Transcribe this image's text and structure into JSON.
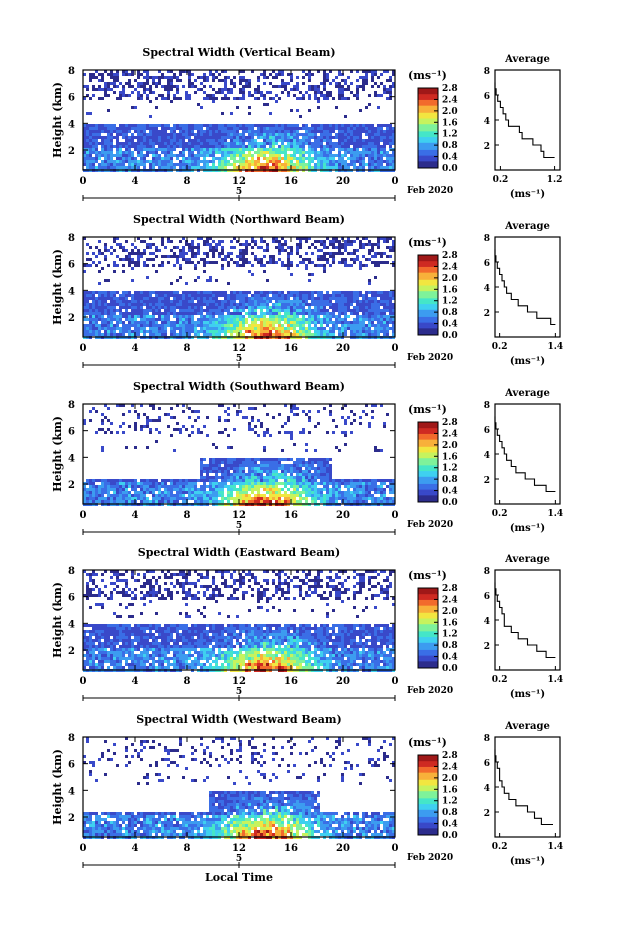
{
  "figure": {
    "month_label": "Feb 2020",
    "date_marker": "5",
    "bottom_xlabel": "Local Time",
    "unit_label": "(ms⁻¹)",
    "average_title": "Average",
    "average_xlabel": "(ms⁻¹)",
    "ylabel": "Height (km)"
  },
  "colors": {
    "colormap": [
      "#2c2c8c",
      "#3949c9",
      "#3a6ee6",
      "#3c9cf0",
      "#3fd0f0",
      "#45e6c8",
      "#7ef29a",
      "#c6f35e",
      "#f2e640",
      "#f8b03a",
      "#f26a2c",
      "#cf2a22",
      "#a01818"
    ],
    "frame": "#000000"
  },
  "chart_data": [
    {
      "type": "heatmap",
      "title": "Spectral Width (Vertical Beam)",
      "xlabel": "",
      "ylabel": "Height (km)",
      "x_ticks": [
        "0",
        "4",
        "8",
        "12",
        "16",
        "20",
        "0"
      ],
      "xlim": [
        0,
        24
      ],
      "y_ticks": [
        "2",
        "4",
        "6",
        "8"
      ],
      "ylim": [
        0.5,
        8
      ],
      "colorbar_ticks": [
        "0.0",
        "0.4",
        "0.8",
        "1.2",
        "1.6",
        "2.0",
        "2.4",
        "2.8"
      ],
      "colorbar_range": [
        0,
        2.8
      ],
      "average_profile": {
        "xlabel": "(ms⁻¹)",
        "x_ticks": [
          "0.2",
          "1.2"
        ],
        "xlim": [
          0.1,
          1.3
        ],
        "heights": [
          1.0,
          1.5,
          2.0,
          2.5,
          3.0,
          3.5,
          4.0,
          4.5,
          5.0,
          5.5,
          6.0,
          6.5,
          7.0
        ],
        "values": [
          1.2,
          1.0,
          0.95,
          0.8,
          0.6,
          0.55,
          0.35,
          0.3,
          0.25,
          0.2,
          0.15,
          0.12,
          0.1
        ]
      }
    },
    {
      "type": "heatmap",
      "title": "Spectral Width (Northward Beam)",
      "xlabel": "",
      "ylabel": "Height (km)",
      "x_ticks": [
        "0",
        "4",
        "8",
        "12",
        "16",
        "20",
        "0"
      ],
      "xlim": [
        0,
        24
      ],
      "y_ticks": [
        "2",
        "4",
        "6",
        "8"
      ],
      "ylim": [
        0.5,
        8
      ],
      "colorbar_ticks": [
        "0.0",
        "0.4",
        "0.8",
        "1.2",
        "1.6",
        "2.0",
        "2.4",
        "2.8"
      ],
      "colorbar_range": [
        0,
        2.8
      ],
      "average_profile": {
        "xlabel": "(ms⁻¹)",
        "x_ticks": [
          "0.2",
          "1.4"
        ],
        "xlim": [
          0.1,
          1.5
        ],
        "heights": [
          1.0,
          1.5,
          2.0,
          2.5,
          3.0,
          3.5,
          4.0,
          4.5,
          5.0,
          5.5,
          6.0,
          6.5,
          7.0
        ],
        "values": [
          1.4,
          1.3,
          1.0,
          0.8,
          0.6,
          0.45,
          0.35,
          0.3,
          0.25,
          0.2,
          0.15,
          0.12,
          0.1
        ]
      }
    },
    {
      "type": "heatmap",
      "title": "Spectral Width (Southward Beam)",
      "xlabel": "",
      "ylabel": "Height (km)",
      "x_ticks": [
        "0",
        "4",
        "8",
        "12",
        "16",
        "20",
        "0"
      ],
      "xlim": [
        0,
        24
      ],
      "y_ticks": [
        "2",
        "4",
        "6",
        "8"
      ],
      "ylim": [
        0.5,
        8
      ],
      "colorbar_ticks": [
        "0.0",
        "0.4",
        "0.8",
        "1.2",
        "1.6",
        "2.0",
        "2.4",
        "2.8"
      ],
      "colorbar_range": [
        0,
        2.8
      ],
      "average_profile": {
        "xlabel": "(ms⁻¹)",
        "x_ticks": [
          "0.2",
          "1.4"
        ],
        "xlim": [
          0.1,
          1.5
        ],
        "heights": [
          1.0,
          1.5,
          2.0,
          2.5,
          3.0,
          3.5,
          4.0,
          4.5,
          5.0,
          5.5,
          6.0,
          6.5,
          7.0
        ],
        "values": [
          1.4,
          1.2,
          0.95,
          0.75,
          0.55,
          0.45,
          0.35,
          0.3,
          0.25,
          0.2,
          0.15,
          0.12,
          0.1
        ]
      }
    },
    {
      "type": "heatmap",
      "title": "Spectral Width (Eastward Beam)",
      "xlabel": "",
      "ylabel": "Height (km)",
      "x_ticks": [
        "0",
        "4",
        "8",
        "12",
        "16",
        "20",
        "0"
      ],
      "xlim": [
        0,
        24
      ],
      "y_ticks": [
        "2",
        "4",
        "6",
        "8"
      ],
      "ylim": [
        0.5,
        8
      ],
      "colorbar_ticks": [
        "0.0",
        "0.4",
        "0.8",
        "1.2",
        "1.6",
        "2.0",
        "2.4",
        "2.8"
      ],
      "colorbar_range": [
        0,
        2.8
      ],
      "average_profile": {
        "xlabel": "(ms⁻¹)",
        "x_ticks": [
          "0.2",
          "1.4"
        ],
        "xlim": [
          0.1,
          1.5
        ],
        "heights": [
          1.0,
          1.5,
          2.0,
          2.5,
          3.0,
          3.5,
          4.0,
          4.5,
          5.0,
          5.5,
          6.0,
          6.5,
          7.0
        ],
        "values": [
          1.4,
          1.2,
          1.0,
          0.8,
          0.6,
          0.45,
          0.3,
          0.3,
          0.25,
          0.2,
          0.15,
          0.12,
          0.1
        ]
      }
    },
    {
      "type": "heatmap",
      "title": "Spectral Width (Westward Beam)",
      "xlabel": "Local Time",
      "ylabel": "Height (km)",
      "x_ticks": [
        "0",
        "4",
        "8",
        "12",
        "16",
        "20",
        "0"
      ],
      "xlim": [
        0,
        24
      ],
      "y_ticks": [
        "2",
        "4",
        "6",
        "8"
      ],
      "ylim": [
        0.5,
        8
      ],
      "colorbar_ticks": [
        "0.0",
        "0.4",
        "0.8",
        "1.2",
        "1.6",
        "2.0",
        "2.4",
        "2.8"
      ],
      "colorbar_range": [
        0,
        2.8
      ],
      "average_profile": {
        "xlabel": "(ms⁻¹)",
        "x_ticks": [
          "0.2",
          "1.4"
        ],
        "xlim": [
          0.1,
          1.5
        ],
        "heights": [
          1.0,
          1.5,
          2.0,
          2.5,
          3.0,
          3.5,
          4.0,
          4.5,
          5.0,
          5.5,
          6.0,
          6.5,
          7.0
        ],
        "values": [
          1.35,
          1.1,
          0.95,
          0.8,
          0.55,
          0.4,
          0.3,
          0.25,
          0.2,
          0.2,
          0.15,
          0.12,
          0.1
        ]
      }
    }
  ]
}
